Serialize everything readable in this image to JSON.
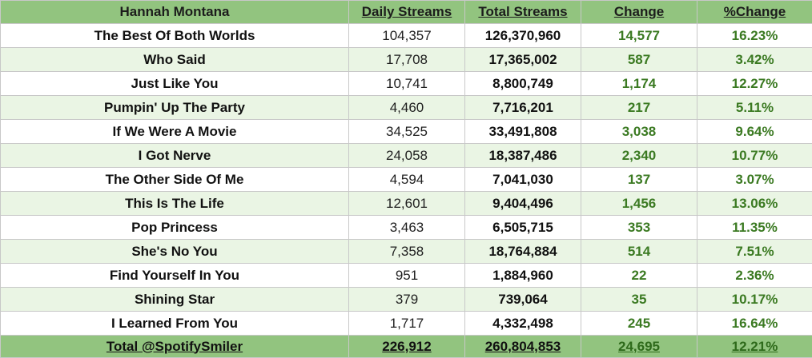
{
  "table": {
    "headers": {
      "song": "Hannah Montana",
      "daily": "Daily Streams",
      "total": "Total Streams",
      "change": "Change",
      "pct": "%Change"
    },
    "rows": [
      {
        "song": "The Best Of Both Worlds",
        "daily": "104,357",
        "total": "126,370,960",
        "change": "14,577",
        "pct": "16.23%"
      },
      {
        "song": "Who Said",
        "daily": "17,708",
        "total": "17,365,002",
        "change": "587",
        "pct": "3.42%"
      },
      {
        "song": "Just Like You",
        "daily": "10,741",
        "total": "8,800,749",
        "change": "1,174",
        "pct": "12.27%"
      },
      {
        "song": "Pumpin' Up The Party",
        "daily": "4,460",
        "total": "7,716,201",
        "change": "217",
        "pct": "5.11%"
      },
      {
        "song": "If We Were A Movie",
        "daily": "34,525",
        "total": "33,491,808",
        "change": "3,038",
        "pct": "9.64%"
      },
      {
        "song": "I Got Nerve",
        "daily": "24,058",
        "total": "18,387,486",
        "change": "2,340",
        "pct": "10.77%"
      },
      {
        "song": "The Other Side Of Me",
        "daily": "4,594",
        "total": "7,041,030",
        "change": "137",
        "pct": "3.07%"
      },
      {
        "song": "This Is The Life",
        "daily": "12,601",
        "total": "9,404,496",
        "change": "1,456",
        "pct": "13.06%"
      },
      {
        "song": "Pop Princess",
        "daily": "3,463",
        "total": "6,505,715",
        "change": "353",
        "pct": "11.35%"
      },
      {
        "song": "She's No You",
        "daily": "7,358",
        "total": "18,764,884",
        "change": "514",
        "pct": "7.51%"
      },
      {
        "song": "Find Yourself In You",
        "daily": "951",
        "total": "1,884,960",
        "change": "22",
        "pct": "2.36%"
      },
      {
        "song": "Shining Star",
        "daily": "379",
        "total": "739,064",
        "change": "35",
        "pct": "10.17%"
      },
      {
        "song": "I Learned From You",
        "daily": "1,717",
        "total": "4,332,498",
        "change": "245",
        "pct": "16.64%"
      }
    ],
    "footer": {
      "song": "Total @SpotifySmiler",
      "daily": "226,912",
      "total": "260,804,853",
      "change": "24,695",
      "pct": "12.21%"
    }
  },
  "colors": {
    "header_bg": "#92c47f",
    "row_alt_bg": "#eaf5e4",
    "change_text": "#3b7a22"
  }
}
